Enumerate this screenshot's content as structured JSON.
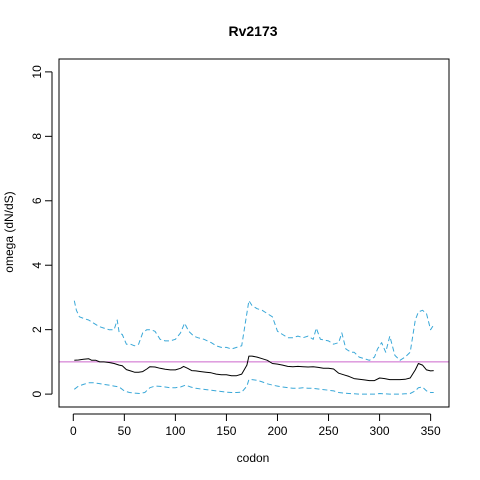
{
  "chart_data": {
    "type": "line",
    "title": "Rv2173",
    "xlabel": "codon",
    "ylabel": "omega (dN/dS)",
    "xlim": [
      -14,
      368
    ],
    "ylim": [
      -0.4,
      10.4
    ],
    "xticks": [
      0,
      50,
      100,
      150,
      200,
      250,
      300,
      350
    ],
    "yticks": [
      0,
      2,
      4,
      6,
      8,
      10
    ],
    "reference_line": {
      "y": 1,
      "color": "#cc66cc"
    },
    "grid": false,
    "colors": {
      "estimate": "#000000",
      "interval": "#3aa8d8"
    },
    "series": [
      {
        "role": "estimate",
        "style": "solid",
        "x": [
          1,
          5,
          10,
          15,
          18,
          22,
          26,
          30,
          35,
          40,
          45,
          48,
          52,
          56,
          60,
          64,
          68,
          72,
          75,
          80,
          85,
          90,
          95,
          100,
          105,
          108,
          112,
          116,
          120,
          125,
          130,
          135,
          140,
          145,
          150,
          155,
          160,
          165,
          170,
          172,
          175,
          180,
          185,
          190,
          195,
          200,
          205,
          210,
          215,
          220,
          225,
          230,
          235,
          240,
          245,
          250,
          255,
          260,
          265,
          270,
          275,
          280,
          285,
          290,
          295,
          300,
          305,
          310,
          315,
          320,
          325,
          330,
          335,
          338,
          342,
          346,
          350,
          353
        ],
        "y": [
          1.05,
          1.06,
          1.08,
          1.1,
          1.05,
          1.05,
          1.0,
          1.0,
          0.98,
          0.95,
          0.9,
          0.88,
          0.76,
          0.72,
          0.68,
          0.68,
          0.7,
          0.78,
          0.85,
          0.84,
          0.8,
          0.77,
          0.75,
          0.75,
          0.8,
          0.86,
          0.8,
          0.73,
          0.72,
          0.7,
          0.68,
          0.66,
          0.62,
          0.6,
          0.6,
          0.57,
          0.57,
          0.62,
          0.9,
          1.18,
          1.18,
          1.15,
          1.1,
          1.05,
          0.95,
          0.93,
          0.9,
          0.86,
          0.85,
          0.86,
          0.85,
          0.84,
          0.85,
          0.83,
          0.8,
          0.8,
          0.78,
          0.65,
          0.6,
          0.55,
          0.48,
          0.46,
          0.44,
          0.42,
          0.42,
          0.5,
          0.48,
          0.45,
          0.45,
          0.45,
          0.46,
          0.5,
          0.75,
          0.95,
          0.9,
          0.75,
          0.72,
          0.73
        ]
      },
      {
        "role": "upper",
        "style": "dashed",
        "x": [
          1,
          3,
          6,
          10,
          15,
          20,
          25,
          30,
          35,
          40,
          43,
          45,
          48,
          52,
          56,
          60,
          64,
          68,
          72,
          76,
          80,
          85,
          90,
          95,
          100,
          105,
          109,
          113,
          118,
          122,
          128,
          135,
          140,
          145,
          150,
          155,
          160,
          165,
          169,
          172,
          175,
          180,
          185,
          190,
          195,
          200,
          205,
          210,
          215,
          220,
          225,
          230,
          235,
          238,
          242,
          250,
          255,
          260,
          263,
          267,
          272,
          275,
          280,
          285,
          290,
          295,
          298,
          302,
          306,
          310,
          315,
          320,
          325,
          330,
          335,
          338,
          342,
          346,
          350,
          353
        ],
        "y": [
          2.9,
          2.6,
          2.4,
          2.35,
          2.3,
          2.2,
          2.1,
          2.05,
          2.0,
          2.0,
          2.3,
          1.9,
          1.85,
          1.55,
          1.55,
          1.5,
          1.55,
          1.9,
          2.0,
          2.0,
          1.95,
          1.7,
          1.65,
          1.65,
          1.7,
          1.9,
          2.2,
          1.95,
          1.8,
          1.75,
          1.7,
          1.6,
          1.5,
          1.45,
          1.45,
          1.4,
          1.45,
          1.5,
          2.3,
          2.9,
          2.75,
          2.65,
          2.6,
          2.5,
          2.4,
          1.95,
          1.85,
          1.75,
          1.75,
          1.8,
          1.75,
          1.8,
          1.7,
          2.05,
          1.7,
          1.65,
          1.55,
          1.6,
          1.9,
          1.4,
          1.3,
          1.3,
          1.15,
          1.1,
          1.05,
          1.15,
          1.4,
          1.6,
          1.3,
          1.8,
          1.2,
          1.05,
          1.15,
          1.3,
          2.3,
          2.55,
          2.6,
          2.5,
          2.0,
          2.15
        ]
      },
      {
        "role": "lower",
        "style": "dashed",
        "x": [
          1,
          5,
          10,
          15,
          20,
          25,
          30,
          35,
          40,
          45,
          50,
          55,
          60,
          65,
          70,
          75,
          80,
          85,
          90,
          95,
          100,
          105,
          110,
          115,
          120,
          125,
          130,
          135,
          140,
          145,
          150,
          155,
          160,
          165,
          170,
          172,
          175,
          180,
          185,
          190,
          195,
          200,
          205,
          210,
          215,
          220,
          225,
          230,
          235,
          240,
          245,
          250,
          255,
          260,
          265,
          270,
          275,
          280,
          285,
          290,
          295,
          300,
          305,
          310,
          315,
          320,
          325,
          330,
          335,
          338,
          342,
          346,
          350,
          353
        ],
        "y": [
          0.15,
          0.25,
          0.3,
          0.35,
          0.35,
          0.33,
          0.3,
          0.28,
          0.25,
          0.22,
          0.1,
          0.05,
          0.03,
          0.02,
          0.05,
          0.2,
          0.25,
          0.24,
          0.22,
          0.2,
          0.2,
          0.22,
          0.28,
          0.22,
          0.18,
          0.16,
          0.14,
          0.12,
          0.1,
          0.08,
          0.06,
          0.05,
          0.05,
          0.06,
          0.25,
          0.45,
          0.45,
          0.43,
          0.38,
          0.32,
          0.28,
          0.25,
          0.22,
          0.2,
          0.18,
          0.18,
          0.2,
          0.18,
          0.18,
          0.16,
          0.14,
          0.12,
          0.1,
          0.05,
          0.03,
          0.02,
          0.01,
          0.0,
          0.0,
          0.0,
          0.0,
          0.02,
          0.01,
          0.0,
          0.0,
          0.0,
          0.01,
          0.02,
          0.1,
          0.2,
          0.22,
          0.1,
          0.05,
          0.05
        ]
      }
    ]
  }
}
